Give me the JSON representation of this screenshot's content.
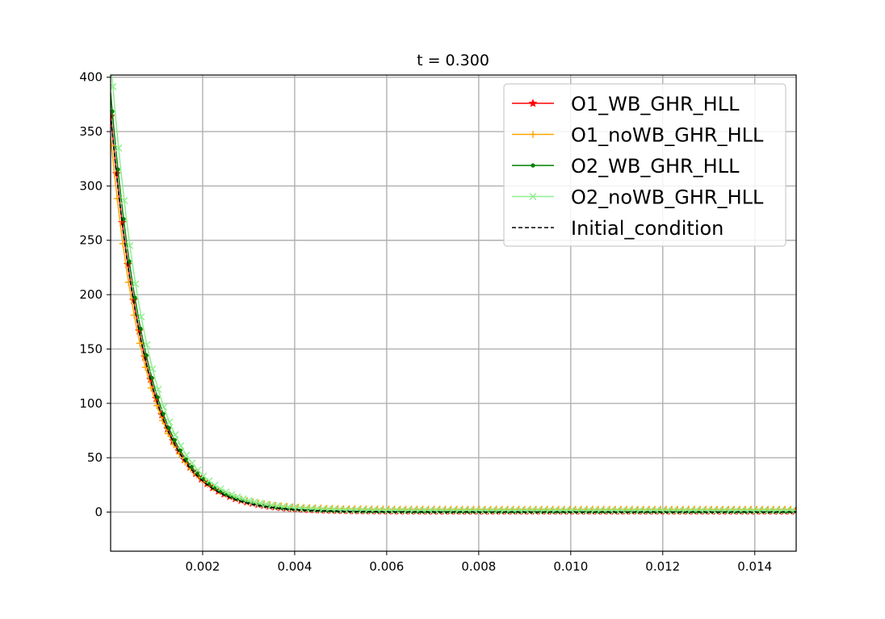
{
  "chart_data": {
    "type": "line",
    "title": "t = 0.300",
    "xlabel": "",
    "ylabel": "",
    "xlim": [
      0.0,
      0.0149
    ],
    "ylim": [
      -36,
      402
    ],
    "xticks": [
      0.002,
      0.004,
      0.006,
      0.008,
      0.01,
      0.012,
      0.014
    ],
    "xtick_labels": [
      "0.002",
      "0.004",
      "0.006",
      "0.008",
      "0.010",
      "0.012",
      "0.014"
    ],
    "yticks": [
      0,
      50,
      100,
      150,
      200,
      250,
      300,
      350,
      400
    ],
    "ytick_labels": [
      "0",
      "50",
      "100",
      "150",
      "200",
      "250",
      "300",
      "350",
      "400"
    ],
    "grid": true,
    "legend_position": "top-right",
    "curve_model": {
      "amplitude": 366,
      "decay_length": 0.000785,
      "baseline": 0
    },
    "series": [
      {
        "name": "O1_WB_GHR_HLL",
        "color": "#ff0000",
        "marker": "star",
        "linestyle": "solid",
        "offset": 0.0,
        "baseline": 0.8,
        "xshift": 0.0
      },
      {
        "name": "O1_noWB_GHR_HLL",
        "color": "#ffa500",
        "marker": "plus",
        "linestyle": "solid",
        "offset": -4e-05,
        "baseline": 2.5,
        "xshift": 3e-05
      },
      {
        "name": "O2_WB_GHR_HLL",
        "color": "#008000",
        "marker": "dot",
        "linestyle": "solid",
        "offset": 2e-05,
        "baseline": 0.5,
        "xshift": 0.0
      },
      {
        "name": "O2_noWB_GHR_HLL",
        "color": "#90ee90",
        "marker": "x",
        "linestyle": "solid",
        "offset": 5e-05,
        "baseline": 1.5,
        "xshift": 0.0
      },
      {
        "name": "Initial_condition",
        "color": "#000000",
        "marker": "none",
        "linestyle": "dashed",
        "offset": 0.0,
        "baseline": 0.0,
        "xshift": 0.0
      }
    ],
    "marker_spacing": 0.000123
  }
}
